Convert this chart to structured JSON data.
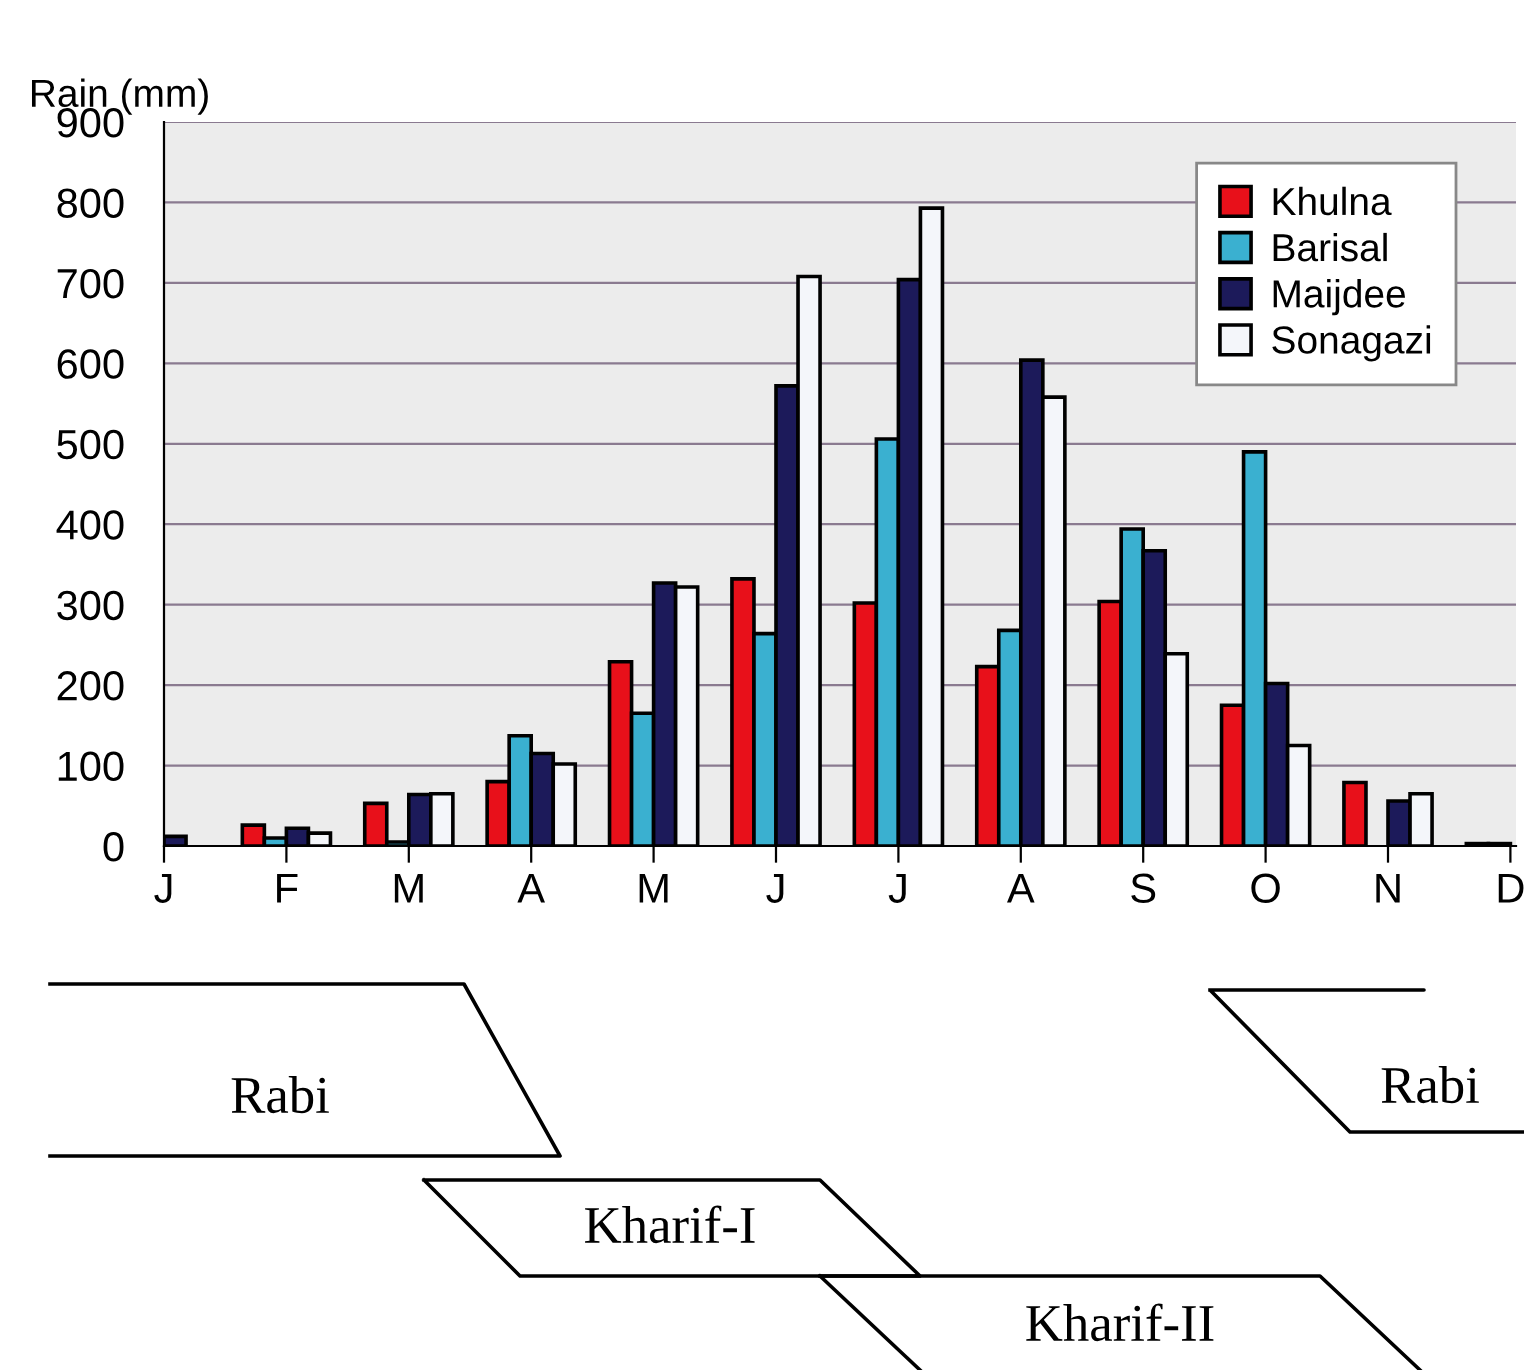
{
  "chart_data": {
    "type": "bar",
    "ylabel": "Rain (mm)",
    "categories": [
      "J",
      "F",
      "M",
      "A",
      "M",
      "J",
      "J",
      "A",
      "S",
      "O",
      "N",
      "D"
    ],
    "series": [
      {
        "name": "Khulna",
        "color": "#e8101a",
        "values": [
          null,
          26,
          53,
          80,
          229,
          332,
          302,
          223,
          304,
          175,
          79,
          3
        ]
      },
      {
        "name": "Barisal",
        "color": "#3ab0d0",
        "values": [
          null,
          10,
          5,
          137,
          165,
          264,
          506,
          268,
          394,
          490,
          null,
          3
        ]
      },
      {
        "name": "Maijdee",
        "color": "#1c1a5a",
        "values": [
          12,
          22,
          64,
          115,
          327,
          572,
          704,
          604,
          367,
          202,
          56,
          null
        ]
      },
      {
        "name": "Sonagazi",
        "color": "#f4f6fa",
        "values": [
          null,
          16,
          65,
          102,
          322,
          708,
          793,
          558,
          239,
          125,
          65,
          null
        ]
      }
    ],
    "ylim": [
      0,
      900
    ],
    "yticks": [
      0,
      100,
      200,
      300,
      400,
      500,
      600,
      700,
      800,
      900
    ],
    "grid": "y",
    "legend": "top right",
    "annotations": [
      "Rabi",
      "Kharif-I",
      "Kharif-II",
      "Rabi"
    ]
  }
}
